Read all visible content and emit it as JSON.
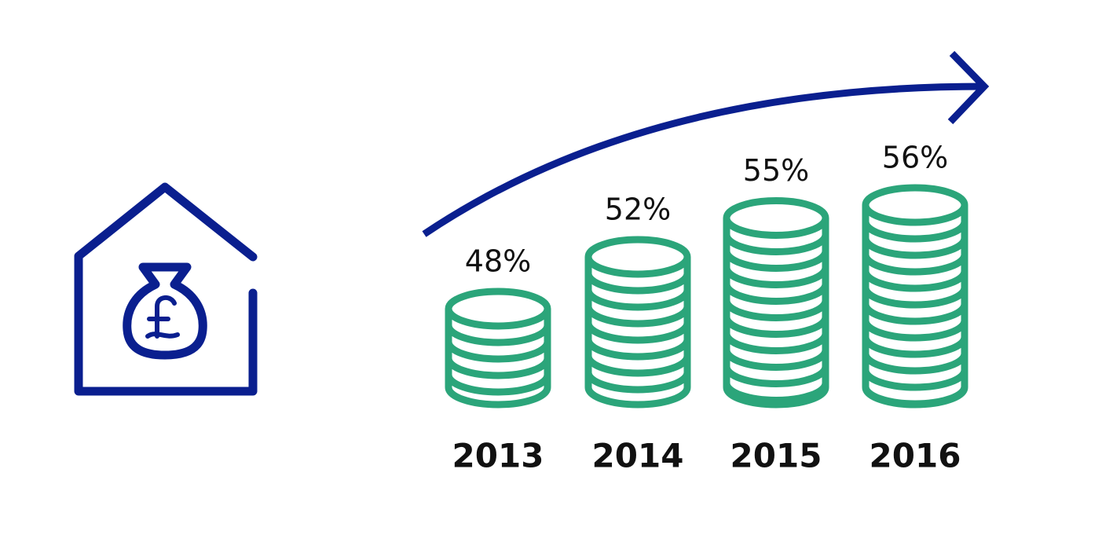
{
  "chart_data": {
    "type": "coin-stack",
    "categories": [
      "2013",
      "2014",
      "2015",
      "2016"
    ],
    "values": [
      48,
      52,
      55,
      56
    ],
    "value_labels": [
      "48%",
      "52%",
      "55%",
      "56%"
    ],
    "color": "#2ba57a"
  }
}
